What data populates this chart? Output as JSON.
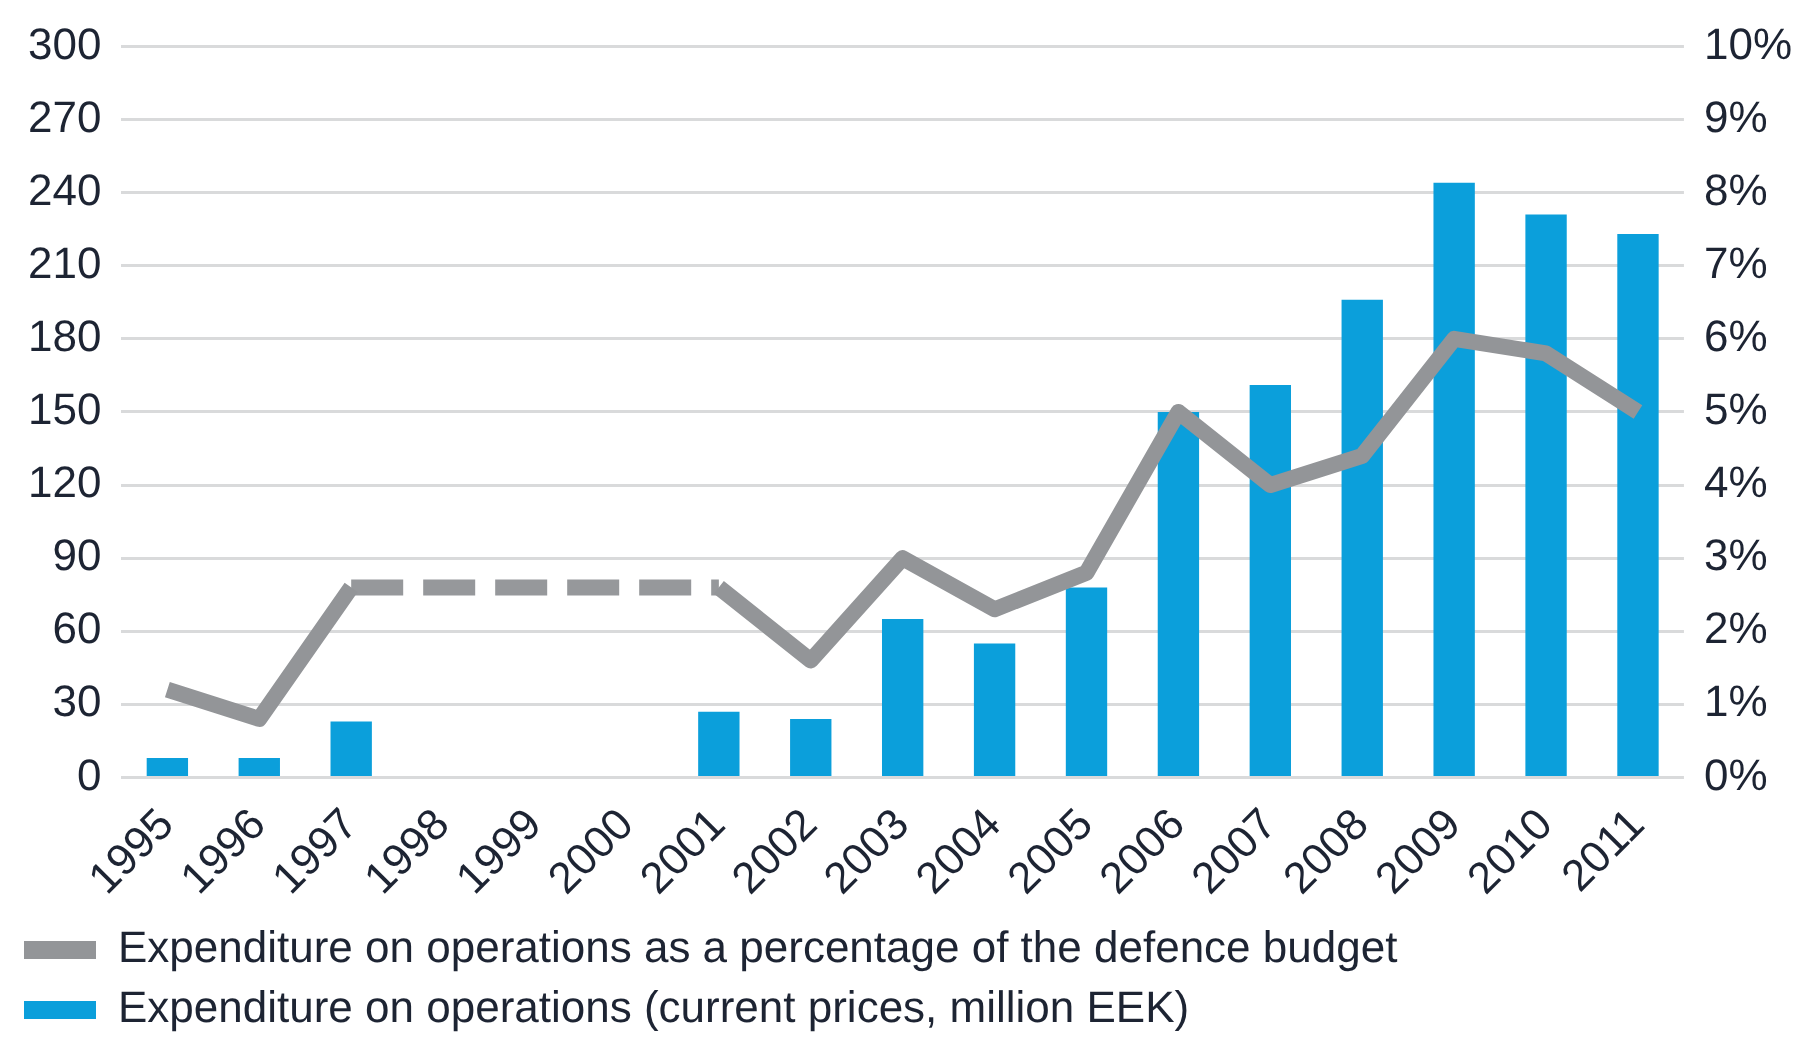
{
  "chart_data": {
    "type": "bar",
    "categories": [
      "1995",
      "1996",
      "1997",
      "1998",
      "1999",
      "2000",
      "2001",
      "2002",
      "2003",
      "2004",
      "2005",
      "2006",
      "2007",
      "2008",
      "2009",
      "2010",
      "2011"
    ],
    "series": [
      {
        "name": "Expenditure on operations as a percentage of the defence budget",
        "type": "line",
        "axis": "y2",
        "color": "#939598",
        "line_style": "solid",
        "values": [
          1.2,
          0.8,
          2.6,
          null,
          null,
          null,
          2.6,
          1.6,
          3.0,
          2.3,
          2.8,
          5.0,
          4.0,
          4.4,
          6.0,
          5.8,
          5.0
        ]
      },
      {
        "type": "line",
        "axis": "y2",
        "color": "#96989b",
        "line_style": "dashed",
        "values": [
          null,
          null,
          2.6,
          2.6,
          2.6,
          2.6,
          2.6,
          null,
          null,
          null,
          null,
          null,
          null,
          null,
          null,
          null,
          null
        ]
      },
      {
        "name": "Expenditure on operations (current prices, million EEK)",
        "color": "#0b9fdb",
        "values": [
          8,
          8,
          23,
          null,
          null,
          null,
          27,
          24,
          65,
          55,
          78,
          150,
          161,
          196,
          244,
          231,
          223
        ]
      }
    ],
    "ylim": [
      0,
      300
    ],
    "yticks": [
      0,
      30,
      60,
      90,
      120,
      150,
      180,
      210,
      240,
      270,
      300
    ],
    "y2lim": [
      0,
      10
    ],
    "y2ticks": [
      {
        "value": 0,
        "label": "0%"
      },
      {
        "value": 1,
        "label": "1%"
      },
      {
        "value": 2,
        "label": "2%"
      },
      {
        "value": 3,
        "label": "3%"
      },
      {
        "value": 4,
        "label": "4%"
      },
      {
        "value": 5,
        "label": "5%"
      },
      {
        "value": 6,
        "label": "6%"
      },
      {
        "value": 7,
        "label": "7%"
      },
      {
        "value": 8,
        "label": "8%"
      },
      {
        "value": 9,
        "label": "9%"
      },
      {
        "value": 10,
        "label": "10%"
      }
    ],
    "grid": "y",
    "legend": "bottom",
    "marker": "none"
  }
}
